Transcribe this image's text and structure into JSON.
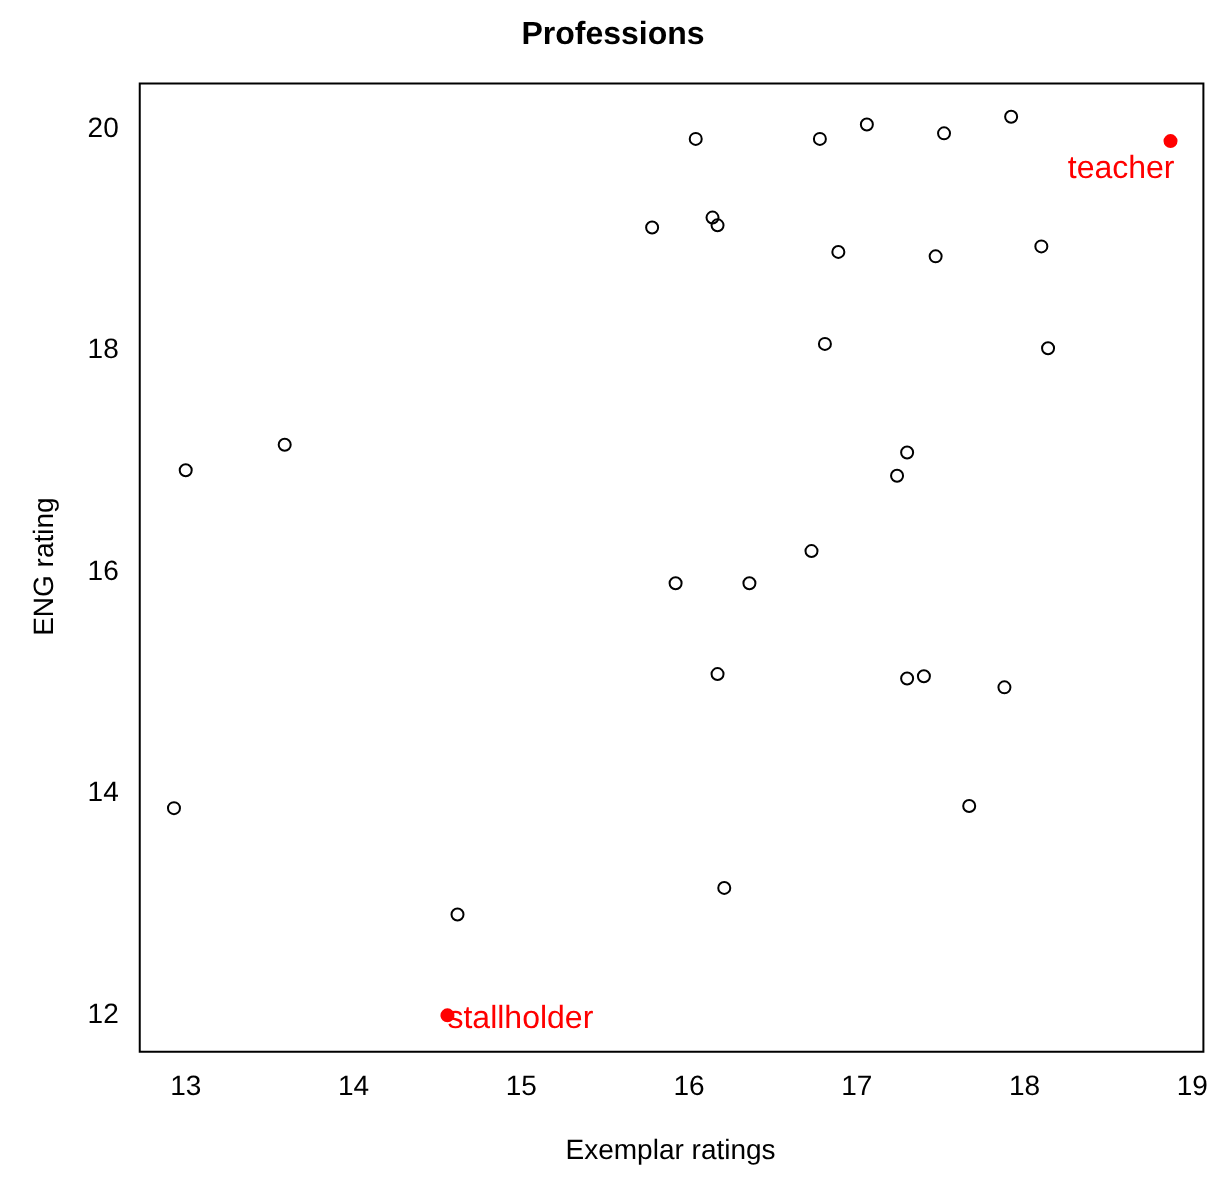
{
  "chart_data": {
    "type": "scatter",
    "title": "Professions",
    "xlabel": "Exemplar ratings",
    "ylabel": "ENG rating",
    "xlim": [
      12.72,
      19.06
    ],
    "ylim": [
      11.68,
      20.42
    ],
    "xticks": [
      13,
      14,
      15,
      16,
      17,
      18,
      19
    ],
    "yticks": [
      12,
      14,
      16,
      18,
      20
    ],
    "grid": false,
    "legend": false,
    "marker": "circle",
    "series": [
      {
        "color": "#000000",
        "x": [
          12.93,
          13.0,
          13.59,
          14.62,
          16.04,
          15.78,
          16.14,
          16.17,
          15.92,
          16.36,
          16.17,
          16.21,
          16.78,
          17.06,
          17.52,
          17.92,
          16.89,
          17.47,
          18.1,
          16.81,
          18.14,
          17.3,
          17.24,
          16.73,
          17.3,
          17.4,
          17.88,
          17.67
        ],
        "values": [
          13.87,
          16.92,
          17.15,
          12.91,
          19.91,
          19.11,
          19.2,
          19.13,
          15.9,
          15.9,
          15.08,
          13.15,
          19.91,
          20.04,
          19.96,
          20.11,
          18.89,
          18.85,
          18.94,
          18.06,
          18.02,
          17.08,
          16.87,
          16.19,
          15.04,
          15.06,
          14.96,
          13.89
        ]
      },
      {
        "color": "#ff0000",
        "x": [
          18.87,
          14.56
        ],
        "values": [
          19.89,
          12.0
        ]
      }
    ],
    "annotations": [
      {
        "text": "teacher",
        "x": 18.87,
        "y": 19.89
      },
      {
        "text": "stallholder",
        "x": 14.56,
        "y": 12.0
      }
    ]
  }
}
